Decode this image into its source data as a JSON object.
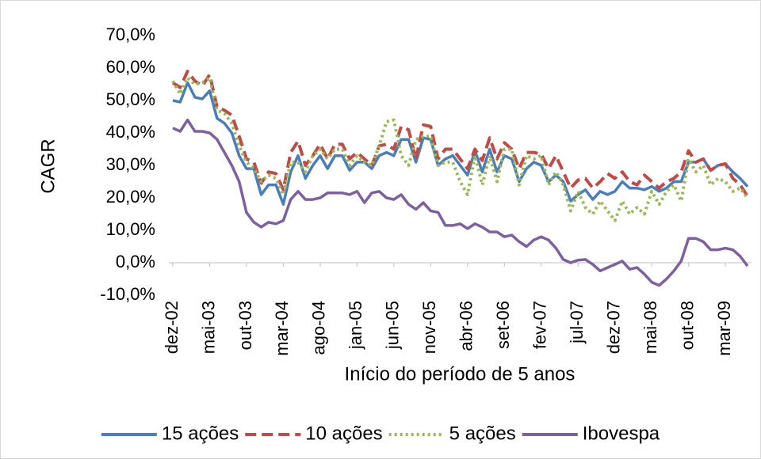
{
  "chart_data": {
    "type": "line",
    "x_label": "Início do período de 5 anos",
    "y_label": "CAGR",
    "categories": [
      "dez-02",
      null,
      null,
      null,
      null,
      "mai-03",
      null,
      null,
      null,
      null,
      "out-03",
      null,
      null,
      null,
      null,
      "mar-04",
      null,
      null,
      null,
      null,
      "ago-04",
      null,
      null,
      null,
      null,
      "jan-05",
      null,
      null,
      null,
      null,
      "jun-05",
      null,
      null,
      null,
      null,
      "nov-05",
      null,
      null,
      null,
      null,
      "abr-06",
      null,
      null,
      null,
      null,
      "set-06",
      null,
      null,
      null,
      null,
      "fev-07",
      null,
      null,
      null,
      null,
      "jul-07",
      null,
      null,
      null,
      null,
      "dez-07",
      null,
      null,
      null,
      null,
      "mai-08",
      null,
      null,
      null,
      null,
      "out-08",
      null,
      null,
      null,
      null,
      "mar-09",
      null,
      null,
      null
    ],
    "ylim": [
      -10,
      70
    ],
    "yticks": [
      {
        "value": -10,
        "label": "-10,0%"
      },
      {
        "value": 0,
        "label": "0,0%"
      },
      {
        "value": 10,
        "label": "10,0%"
      },
      {
        "value": 20,
        "label": "20,0%"
      },
      {
        "value": 30,
        "label": "30,0%"
      },
      {
        "value": 40,
        "label": "40,0%"
      },
      {
        "value": 50,
        "label": "50,0%"
      },
      {
        "value": 60,
        "label": "60,0%"
      },
      {
        "value": 70,
        "label": "70,0%"
      }
    ],
    "grid": false,
    "legend": "bottom",
    "series": [
      {
        "name": "15 ações",
        "color": "#4a7ebb",
        "style": "solid",
        "values": [
          50,
          49.5,
          55.5,
          51,
          50.5,
          53,
          44.5,
          43,
          40,
          33,
          29,
          29,
          21,
          24,
          24,
          18,
          28,
          33,
          26,
          30,
          33,
          29,
          33,
          33,
          28.5,
          31,
          31,
          29,
          33,
          34,
          33,
          38,
          38,
          31,
          38.5,
          38,
          30,
          32,
          33,
          30,
          27,
          34.5,
          28,
          35,
          28,
          33,
          32,
          25,
          29,
          31,
          30,
          25,
          27,
          25,
          19,
          21,
          22.5,
          19.5,
          22,
          21,
          22,
          25,
          23,
          23,
          22.5,
          23.5,
          22,
          23,
          25,
          25,
          31,
          31,
          32,
          28.5,
          30,
          30.5,
          28,
          26,
          23.5
        ]
      },
      {
        "name": "10 ações",
        "color": "#be4b48",
        "style": "dashed",
        "values": [
          55.5,
          54,
          59,
          56,
          54.5,
          58,
          48,
          47,
          45.5,
          39,
          32,
          31,
          24.5,
          28,
          27.5,
          22.5,
          34,
          37.5,
          30,
          33,
          36.5,
          32,
          36.5,
          36.5,
          32,
          34,
          32,
          30,
          36,
          36.5,
          35,
          42,
          41,
          32,
          42.5,
          42,
          32,
          35,
          35,
          32,
          29,
          35,
          31.5,
          38.5,
          32,
          37,
          35,
          29,
          34,
          34,
          33.5,
          29,
          33,
          28,
          23,
          25.5,
          26,
          23,
          25,
          27.5,
          26,
          28,
          25,
          24,
          27,
          25,
          23,
          25,
          26,
          28,
          34.5,
          31,
          32,
          28.5,
          30,
          30.5,
          26,
          24,
          20.5
        ]
      },
      {
        "name": "5 ações",
        "color": "#98b954",
        "style": "dotted",
        "values": [
          56,
          52,
          57,
          55,
          55.5,
          57,
          47,
          46,
          43,
          36,
          31,
          29,
          25,
          27,
          26,
          21,
          31,
          31,
          28,
          33,
          35,
          32,
          35,
          35,
          30,
          33,
          31,
          30,
          36,
          43.5,
          44,
          33,
          30,
          38,
          39,
          39,
          30,
          31,
          31,
          25,
          21,
          33,
          24,
          33,
          25,
          35,
          35,
          24,
          33,
          32,
          33,
          24,
          28,
          24,
          16,
          22,
          17,
          15,
          19,
          16,
          13,
          19,
          15,
          17,
          15,
          22,
          18,
          22,
          24,
          19,
          32,
          28,
          30,
          24,
          26,
          25,
          22,
          23,
          20
        ]
      },
      {
        "name": "Ibovespa",
        "color": "#7d60a0",
        "style": "solid",
        "values": [
          41.5,
          40.5,
          44,
          40.5,
          40.5,
          40,
          38,
          34,
          30,
          25,
          15.5,
          12.5,
          11,
          12.5,
          12,
          13,
          19.5,
          22,
          19.5,
          19.5,
          20,
          21.5,
          21.5,
          21.5,
          21,
          22,
          18.5,
          21.5,
          22,
          20,
          19.5,
          21,
          18,
          16.5,
          18.5,
          16,
          15.5,
          11.5,
          11.5,
          12,
          10.5,
          12,
          11,
          9.5,
          9.5,
          8,
          8.5,
          6.5,
          5,
          7,
          8,
          7,
          4.5,
          1,
          0,
          0.8,
          1,
          -0.5,
          -2.5,
          -1.5,
          -0.5,
          0.5,
          -2,
          -1.5,
          -3.5,
          -6,
          -7,
          -5,
          -2.5,
          0.5,
          7.5,
          7.5,
          6.5,
          4,
          4,
          4.5,
          4,
          2,
          -1
        ]
      }
    ]
  }
}
